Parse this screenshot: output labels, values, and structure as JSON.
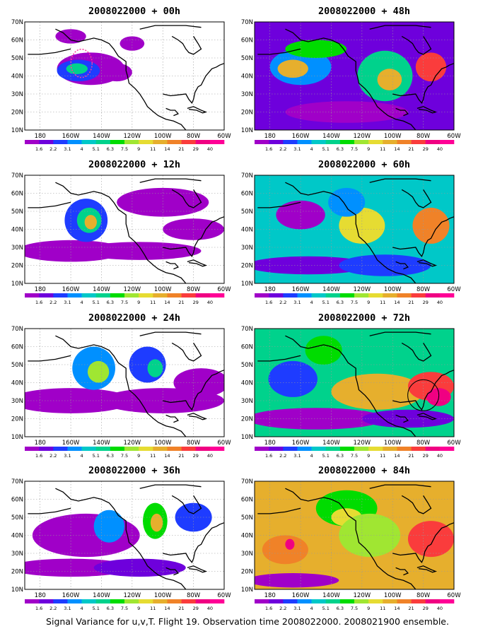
{
  "panels": [
    {
      "title": "2008022000 + 00h",
      "lead_hours": 0
    },
    {
      "title": "2008022000 + 48h",
      "lead_hours": 48
    },
    {
      "title": "2008022000 + 12h",
      "lead_hours": 12
    },
    {
      "title": "2008022000 + 60h",
      "lead_hours": 60
    },
    {
      "title": "2008022000 + 24h",
      "lead_hours": 24
    },
    {
      "title": "2008022000 + 72h",
      "lead_hours": 72
    },
    {
      "title": "2008022000 + 36h",
      "lead_hours": 36
    },
    {
      "title": "2008022000 + 84h",
      "lead_hours": 84
    }
  ],
  "lat_labels": [
    "10N",
    "20N",
    "30N",
    "40N",
    "50N",
    "60N",
    "70N"
  ],
  "lon_labels": [
    "180",
    "160W",
    "140W",
    "120W",
    "100W",
    "80W",
    "60W"
  ],
  "colorbar": {
    "levels": [
      "1.6",
      "2.2",
      "3.1",
      "4",
      "5.1",
      "6.3",
      "7.5",
      "9",
      "11",
      "14",
      "21",
      "29",
      "40"
    ],
    "colors": [
      "#a000c8",
      "#6e00dc",
      "#1e3cff",
      "#0090ff",
      "#00c8c8",
      "#00d28c",
      "#00dc00",
      "#a0e632",
      "#e6dc32",
      "#e6af2d",
      "#f08228",
      "#fa3c3c",
      "#f00082",
      "#ff0096"
    ]
  },
  "caption": "Signal Variance for u,v,T. Flight 19. Observation time 2008022000. 2008021900 ensemble."
}
